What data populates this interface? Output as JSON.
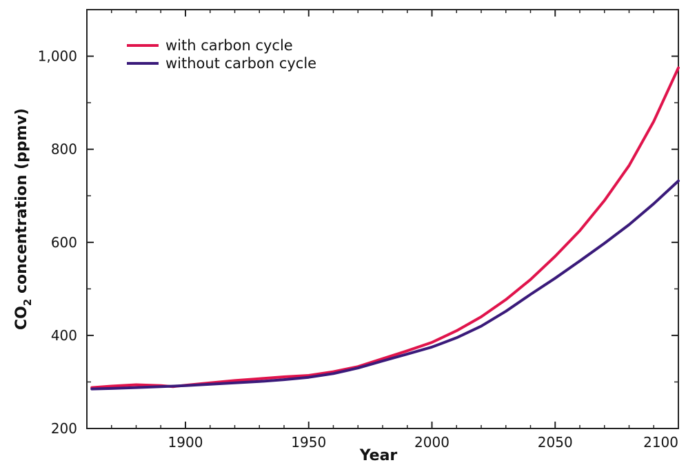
{
  "chart_data": {
    "type": "line",
    "xlabel": "Year",
    "ylabel": "CO₂ concentration (ppmv)",
    "ylabel_parts": {
      "pre": "CO",
      "sub": "2",
      "post": " concentration (ppmv)"
    },
    "xlim": [
      1860,
      2100
    ],
    "ylim": [
      200,
      1100
    ],
    "xticks": [
      1900,
      1950,
      2000,
      2050,
      2100
    ],
    "xtick_labels": [
      "1900",
      "1950",
      "2000",
      "2050",
      "2100"
    ],
    "yticks": [
      200,
      400,
      600,
      800,
      1000
    ],
    "ytick_labels": [
      "200",
      "400",
      "600",
      "800",
      "1,000"
    ],
    "grid": false,
    "legend_position": "top-left",
    "series": [
      {
        "name": "with carbon cycle",
        "color": "#e0144c",
        "x": [
          1862,
          1870,
          1880,
          1890,
          1895,
          1900,
          1910,
          1920,
          1930,
          1940,
          1950,
          1960,
          1970,
          1980,
          1990,
          2000,
          2010,
          2020,
          2030,
          2040,
          2050,
          2060,
          2070,
          2080,
          2090,
          2100
        ],
        "y": [
          288,
          291,
          294,
          292,
          290,
          293,
          298,
          303,
          307,
          311,
          314,
          322,
          333,
          350,
          367,
          385,
          410,
          440,
          477,
          520,
          570,
          625,
          690,
          765,
          860,
          975
        ]
      },
      {
        "name": "without carbon cycle",
        "color": "#3a1a7a",
        "x": [
          1862,
          1870,
          1880,
          1890,
          1900,
          1910,
          1920,
          1930,
          1940,
          1950,
          1960,
          1970,
          1980,
          1990,
          2000,
          2010,
          2020,
          2030,
          2040,
          2050,
          2060,
          2070,
          2080,
          2090,
          2100
        ],
        "y": [
          285,
          286,
          288,
          290,
          292,
          295,
          298,
          301,
          305,
          310,
          318,
          330,
          345,
          360,
          375,
          395,
          420,
          452,
          488,
          523,
          560,
          598,
          638,
          683,
          732
        ]
      }
    ]
  }
}
